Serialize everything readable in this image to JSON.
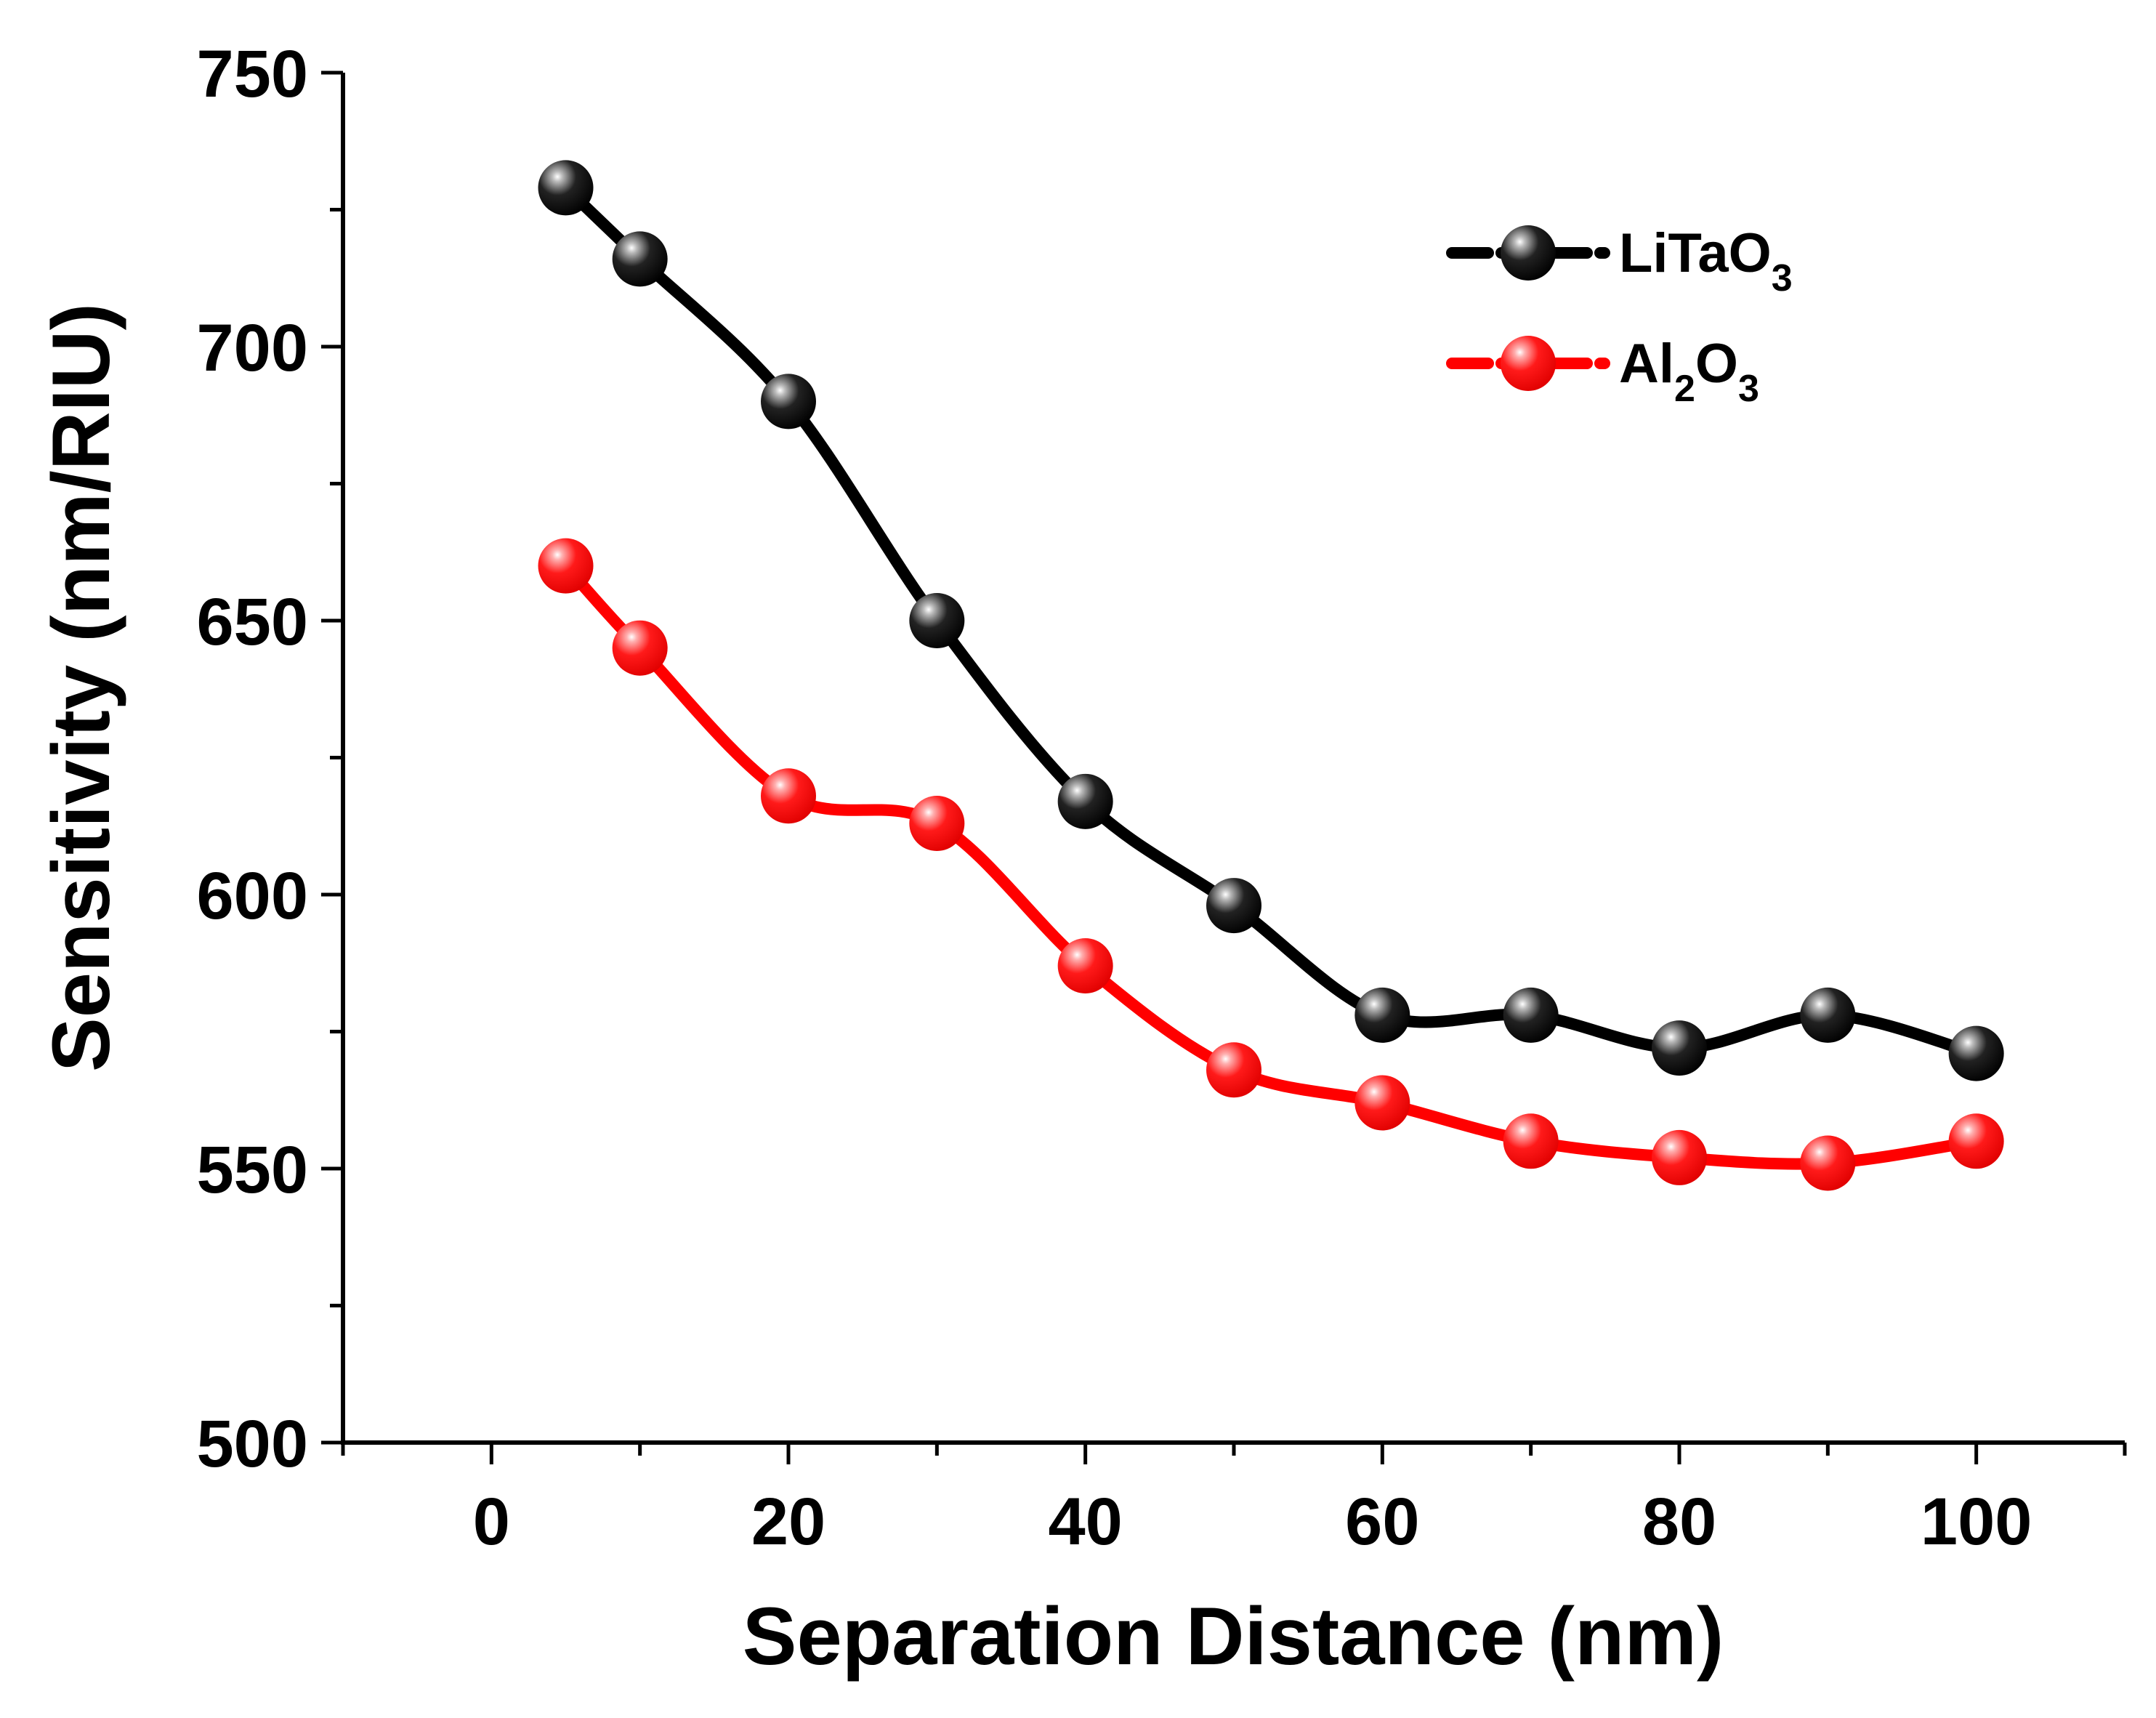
{
  "chart_data": {
    "type": "line",
    "title": "",
    "xlabel": "Separation Distance (nm)",
    "ylabel": "Sensitivity (nm/RIU)",
    "xlim": [
      -10,
      110
    ],
    "ylim": [
      500,
      750
    ],
    "xticks": [
      0,
      20,
      40,
      60,
      80,
      100
    ],
    "yticks": [
      500,
      550,
      600,
      650,
      700,
      750
    ],
    "grid": false,
    "legend_position": "top-right",
    "series": [
      {
        "legend_parts": [
          "LiTaO",
          "3"
        ],
        "color": "#000000",
        "x": [
          5,
          10,
          20,
          30,
          40,
          50,
          60,
          70,
          80,
          90,
          100
        ],
        "y": [
          729,
          716,
          690,
          650,
          617,
          598,
          578,
          578,
          572,
          578,
          571
        ]
      },
      {
        "legend_parts": [
          "Al",
          "2",
          "O",
          "3"
        ],
        "color": "#ff0000",
        "x": [
          5,
          10,
          20,
          30,
          40,
          50,
          60,
          70,
          80,
          90,
          100
        ],
        "y": [
          660,
          645,
          618,
          613,
          587,
          568,
          562,
          555,
          552,
          551,
          555
        ]
      }
    ]
  }
}
